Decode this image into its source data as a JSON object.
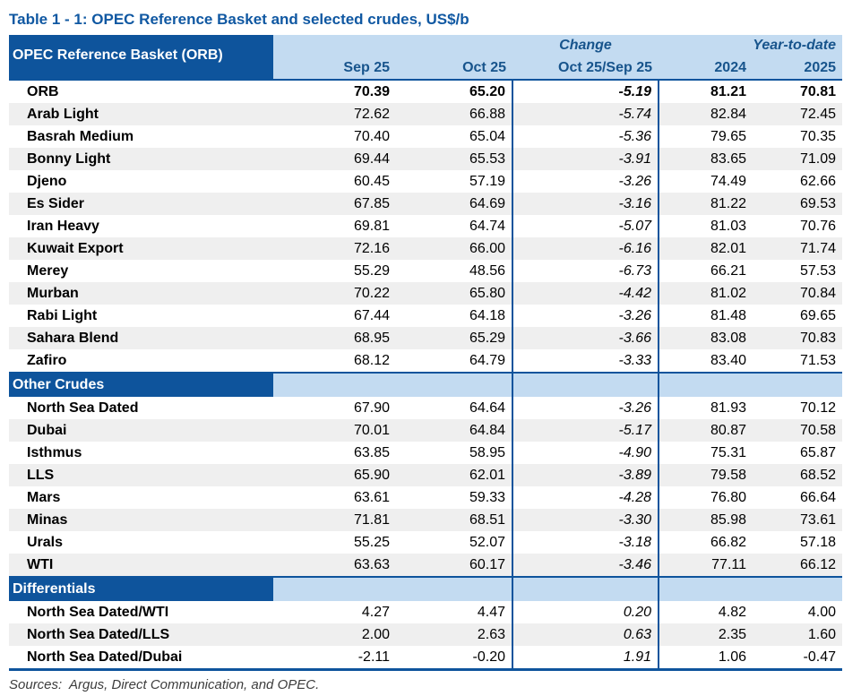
{
  "title": "Table 1 - 1: OPEC Reference Basket and selected crudes, US$/b",
  "colors": {
    "dark_blue": "#0E549C",
    "light_blue": "#C3DBF1",
    "header_text": "#17548C",
    "title_text": "#1058A2",
    "stripe": "#EFEFEF",
    "footer_text": "#3D3D3D"
  },
  "header": {
    "corner_label": "OPEC Reference Basket (ORB)",
    "group_change": "Change",
    "group_ytd": "Year-to-date",
    "columns": [
      "Sep 25",
      "Oct 25",
      "Oct 25/Sep 25",
      "2024",
      "2025"
    ]
  },
  "sections": [
    {
      "label": null,
      "rows": [
        {
          "label": "ORB",
          "emphasis": true,
          "values": [
            "70.39",
            "65.20",
            "-5.19",
            "81.21",
            "70.81"
          ]
        },
        {
          "label": "Arab Light",
          "values": [
            "72.62",
            "66.88",
            "-5.74",
            "82.84",
            "72.45"
          ]
        },
        {
          "label": "Basrah Medium",
          "values": [
            "70.40",
            "65.04",
            "-5.36",
            "79.65",
            "70.35"
          ]
        },
        {
          "label": "Bonny Light",
          "values": [
            "69.44",
            "65.53",
            "-3.91",
            "83.65",
            "71.09"
          ]
        },
        {
          "label": "Djeno",
          "values": [
            "60.45",
            "57.19",
            "-3.26",
            "74.49",
            "62.66"
          ]
        },
        {
          "label": "Es Sider",
          "values": [
            "67.85",
            "64.69",
            "-3.16",
            "81.22",
            "69.53"
          ]
        },
        {
          "label": "Iran Heavy",
          "values": [
            "69.81",
            "64.74",
            "-5.07",
            "81.03",
            "70.76"
          ]
        },
        {
          "label": "Kuwait Export",
          "values": [
            "72.16",
            "66.00",
            "-6.16",
            "82.01",
            "71.74"
          ]
        },
        {
          "label": "Merey",
          "values": [
            "55.29",
            "48.56",
            "-6.73",
            "66.21",
            "57.53"
          ]
        },
        {
          "label": "Murban",
          "values": [
            "70.22",
            "65.80",
            "-4.42",
            "81.02",
            "70.84"
          ]
        },
        {
          "label": "Rabi Light",
          "values": [
            "67.44",
            "64.18",
            "-3.26",
            "81.48",
            "69.65"
          ]
        },
        {
          "label": "Sahara Blend",
          "values": [
            "68.95",
            "65.29",
            "-3.66",
            "83.08",
            "70.83"
          ]
        },
        {
          "label": "Zafiro",
          "values": [
            "68.12",
            "64.79",
            "-3.33",
            "83.40",
            "71.53"
          ]
        }
      ]
    },
    {
      "label": "Other Crudes",
      "rows": [
        {
          "label": "North Sea Dated",
          "values": [
            "67.90",
            "64.64",
            "-3.26",
            "81.93",
            "70.12"
          ]
        },
        {
          "label": "Dubai",
          "values": [
            "70.01",
            "64.84",
            "-5.17",
            "80.87",
            "70.58"
          ]
        },
        {
          "label": "Isthmus",
          "values": [
            "63.85",
            "58.95",
            "-4.90",
            "75.31",
            "65.87"
          ]
        },
        {
          "label": "LLS",
          "values": [
            "65.90",
            "62.01",
            "-3.89",
            "79.58",
            "68.52"
          ]
        },
        {
          "label": "Mars",
          "values": [
            "63.61",
            "59.33",
            "-4.28",
            "76.80",
            "66.64"
          ]
        },
        {
          "label": "Minas",
          "values": [
            "71.81",
            "68.51",
            "-3.30",
            "85.98",
            "73.61"
          ]
        },
        {
          "label": "Urals",
          "values": [
            "55.25",
            "52.07",
            "-3.18",
            "66.82",
            "57.18"
          ]
        },
        {
          "label": "WTI",
          "values": [
            "63.63",
            "60.17",
            "-3.46",
            "77.11",
            "66.12"
          ]
        }
      ]
    },
    {
      "label": "Differentials",
      "rows": [
        {
          "label": "North Sea Dated/WTI",
          "values": [
            "4.27",
            "4.47",
            "0.20",
            "4.82",
            "4.00"
          ]
        },
        {
          "label": "North Sea Dated/LLS",
          "values": [
            "2.00",
            "2.63",
            "0.63",
            "2.35",
            "1.60"
          ]
        },
        {
          "label": "North Sea Dated/Dubai",
          "values": [
            "-2.11",
            "-0.20",
            "1.91",
            "1.06",
            "-0.47"
          ]
        }
      ]
    }
  ],
  "footer": "Sources:  Argus, Direct Communication, and OPEC."
}
